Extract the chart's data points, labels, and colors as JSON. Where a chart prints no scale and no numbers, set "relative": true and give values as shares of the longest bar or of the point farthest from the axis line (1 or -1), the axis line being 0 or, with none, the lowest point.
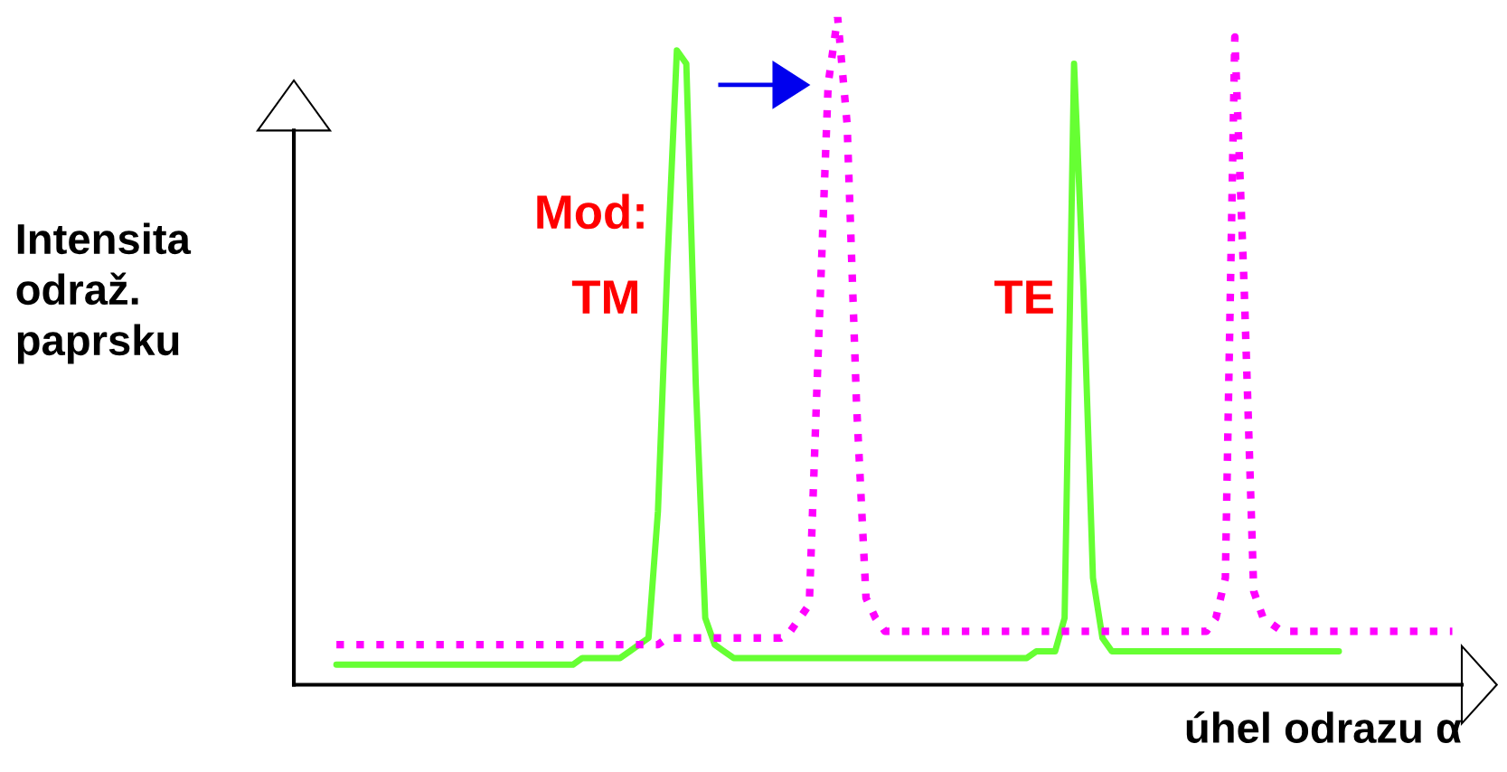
{
  "chart_data": {
    "type": "line",
    "relative": true,
    "xlabel": "úhel odrazu α",
    "ylabel": "Intensita\nodraž.\npaprsku",
    "annotations": [
      "Mod:",
      "TM",
      "TE"
    ],
    "categories": [
      null,
      null,
      null,
      null,
      null,
      null,
      null,
      null,
      null,
      null,
      null,
      null,
      null,
      null,
      null,
      null,
      null,
      null,
      null,
      null,
      null,
      null,
      null,
      null,
      null,
      null,
      null,
      null,
      null,
      null,
      null,
      null,
      null,
      null,
      null,
      null,
      null,
      null,
      null,
      null,
      null,
      null,
      null,
      null,
      null,
      null,
      null,
      null,
      null,
      null,
      null,
      null,
      null,
      null,
      null,
      null,
      null,
      null,
      null,
      null,
      null,
      null,
      null,
      null,
      null,
      null,
      null,
      null,
      null,
      null,
      null,
      null,
      null,
      null,
      null,
      null,
      null,
      null,
      null,
      null,
      null,
      null,
      null,
      null,
      null,
      null,
      null,
      null,
      null,
      null,
      null,
      null,
      null,
      null,
      null,
      null,
      null,
      null,
      null,
      null,
      null,
      null,
      null,
      null,
      null,
      null,
      null,
      null,
      null,
      null,
      null,
      null,
      null,
      null,
      null,
      null,
      null,
      null,
      null
    ],
    "series": [
      {
        "color": "#66ff33",
        "line_style": "solid",
        "values": [
          0.03,
          0.03,
          0.03,
          0.03,
          0.03,
          0.03,
          0.03,
          0.03,
          0.03,
          0.03,
          0.03,
          0.03,
          0.03,
          0.03,
          0.03,
          0.03,
          0.03,
          0.03,
          0.03,
          0.03,
          0.03,
          0.03,
          0.03,
          0.03,
          0.03,
          0.03,
          0.04,
          0.04,
          0.04,
          0.04,
          0.04,
          0.05,
          0.06,
          0.07,
          0.26,
          0.63,
          0.95,
          0.93,
          0.45,
          0.1,
          0.06,
          0.05,
          0.04,
          0.04,
          0.04,
          0.04,
          0.04,
          0.04,
          0.04,
          0.04,
          0.04,
          0.04,
          0.04,
          0.04,
          0.04,
          0.04,
          0.04,
          0.04,
          0.04,
          0.04,
          0.04,
          0.04,
          0.04,
          0.04,
          0.04,
          0.04,
          0.04,
          0.04,
          0.04,
          0.04,
          0.04,
          0.04,
          0.04,
          0.04,
          0.05,
          0.05,
          0.05,
          0.1,
          0.93,
          0.59,
          0.16,
          0.07,
          0.05,
          0.05,
          0.05,
          0.05,
          0.05,
          0.05,
          0.05,
          0.05,
          0.05,
          0.05,
          0.05,
          0.05,
          0.05,
          0.05,
          0.05,
          0.05,
          0.05,
          0.05,
          0.05,
          0.05,
          0.05,
          0.05,
          0.05,
          0.05,
          0.05,
          null,
          null,
          null,
          null,
          null,
          null,
          null,
          null,
          null,
          null,
          null,
          null
        ]
      },
      {
        "color": "#ff00ff",
        "line_style": "dotted",
        "values": [
          0.06,
          0.06,
          0.06,
          0.06,
          0.06,
          0.06,
          0.06,
          0.06,
          0.06,
          0.06,
          0.06,
          0.06,
          0.06,
          0.06,
          0.06,
          0.06,
          0.06,
          0.06,
          0.06,
          0.06,
          0.06,
          0.06,
          0.06,
          0.06,
          0.06,
          0.06,
          0.06,
          0.06,
          0.06,
          0.06,
          0.06,
          0.06,
          0.06,
          0.06,
          0.06,
          0.07,
          0.07,
          0.07,
          0.07,
          0.07,
          0.07,
          0.07,
          0.07,
          0.07,
          0.07,
          0.07,
          0.07,
          0.07,
          0.08,
          0.1,
          0.12,
          0.52,
          0.9,
          1,
          0.84,
          0.42,
          0.13,
          0.1,
          0.08,
          0.08,
          0.08,
          0.08,
          0.08,
          0.08,
          0.08,
          0.08,
          0.08,
          0.08,
          0.08,
          0.08,
          0.08,
          0.08,
          0.08,
          0.08,
          0.08,
          0.08,
          0.08,
          0.08,
          0.08,
          0.08,
          0.08,
          0.08,
          0.08,
          0.08,
          0.08,
          0.08,
          0.08,
          0.08,
          0.08,
          0.08,
          0.08,
          0.08,
          0.08,
          0.1,
          0.16,
          0.97,
          0.59,
          0.14,
          0.1,
          0.09,
          0.08,
          0.08,
          0.08,
          0.08,
          0.08,
          0.08,
          0.08,
          0.08,
          0.08,
          0.08,
          0.08,
          0.08,
          0.08,
          0.08,
          0.08,
          0.08,
          0.08,
          0.08,
          0.08
        ]
      }
    ]
  }
}
